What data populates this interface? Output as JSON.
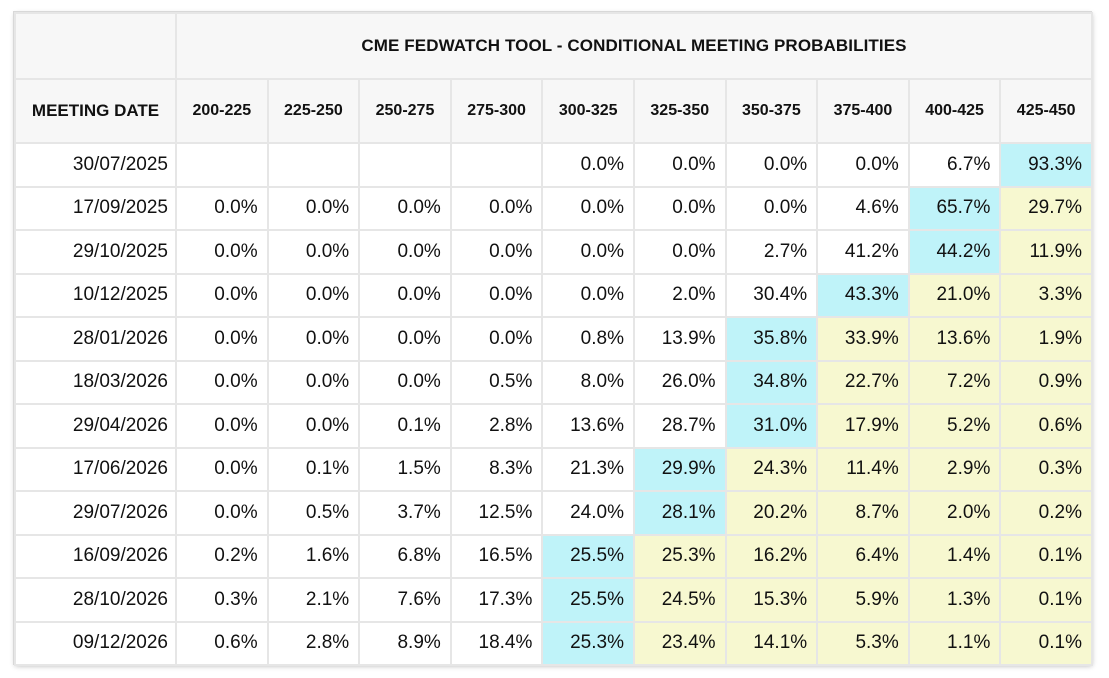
{
  "chart_data": {
    "type": "table",
    "title": "CME FEDWATCH TOOL - CONDITIONAL MEETING PROBABILITIES",
    "row_header_label": "MEETING DATE",
    "columns": [
      "200-225",
      "225-250",
      "250-275",
      "275-300",
      "300-325",
      "325-350",
      "350-375",
      "375-400",
      "400-425",
      "425-450"
    ],
    "colors": {
      "max": "#bff3f9",
      "above": "#f7f8d0",
      "normal": "#ffffff",
      "header_bg": "#f7f7f7",
      "border": "#e6e6e6"
    },
    "rows": [
      {
        "date": "30/07/2025",
        "values": [
          "",
          "",
          "",
          "",
          "0.0%",
          "0.0%",
          "0.0%",
          "0.0%",
          "6.7%",
          "93.3%"
        ],
        "max_index": 9
      },
      {
        "date": "17/09/2025",
        "values": [
          "0.0%",
          "0.0%",
          "0.0%",
          "0.0%",
          "0.0%",
          "0.0%",
          "0.0%",
          "4.6%",
          "65.7%",
          "29.7%"
        ],
        "max_index": 8
      },
      {
        "date": "29/10/2025",
        "values": [
          "0.0%",
          "0.0%",
          "0.0%",
          "0.0%",
          "0.0%",
          "0.0%",
          "2.7%",
          "41.2%",
          "44.2%",
          "11.9%"
        ],
        "max_index": 8
      },
      {
        "date": "10/12/2025",
        "values": [
          "0.0%",
          "0.0%",
          "0.0%",
          "0.0%",
          "0.0%",
          "2.0%",
          "30.4%",
          "43.3%",
          "21.0%",
          "3.3%"
        ],
        "max_index": 7
      },
      {
        "date": "28/01/2026",
        "values": [
          "0.0%",
          "0.0%",
          "0.0%",
          "0.0%",
          "0.8%",
          "13.9%",
          "35.8%",
          "33.9%",
          "13.6%",
          "1.9%"
        ],
        "max_index": 6
      },
      {
        "date": "18/03/2026",
        "values": [
          "0.0%",
          "0.0%",
          "0.0%",
          "0.5%",
          "8.0%",
          "26.0%",
          "34.8%",
          "22.7%",
          "7.2%",
          "0.9%"
        ],
        "max_index": 6
      },
      {
        "date": "29/04/2026",
        "values": [
          "0.0%",
          "0.0%",
          "0.1%",
          "2.8%",
          "13.6%",
          "28.7%",
          "31.0%",
          "17.9%",
          "5.2%",
          "0.6%"
        ],
        "max_index": 6
      },
      {
        "date": "17/06/2026",
        "values": [
          "0.0%",
          "0.1%",
          "1.5%",
          "8.3%",
          "21.3%",
          "29.9%",
          "24.3%",
          "11.4%",
          "2.9%",
          "0.3%"
        ],
        "max_index": 5
      },
      {
        "date": "29/07/2026",
        "values": [
          "0.0%",
          "0.5%",
          "3.7%",
          "12.5%",
          "24.0%",
          "28.1%",
          "20.2%",
          "8.7%",
          "2.0%",
          "0.2%"
        ],
        "max_index": 5
      },
      {
        "date": "16/09/2026",
        "values": [
          "0.2%",
          "1.6%",
          "6.8%",
          "16.5%",
          "25.5%",
          "25.3%",
          "16.2%",
          "6.4%",
          "1.4%",
          "0.1%"
        ],
        "max_index": 4
      },
      {
        "date": "28/10/2026",
        "values": [
          "0.3%",
          "2.1%",
          "7.6%",
          "17.3%",
          "25.5%",
          "24.5%",
          "15.3%",
          "5.9%",
          "1.3%",
          "0.1%"
        ],
        "max_index": 4
      },
      {
        "date": "09/12/2026",
        "values": [
          "0.6%",
          "2.8%",
          "8.9%",
          "18.4%",
          "25.3%",
          "23.4%",
          "14.1%",
          "5.3%",
          "1.1%",
          "0.1%"
        ],
        "max_index": 4
      }
    ]
  }
}
